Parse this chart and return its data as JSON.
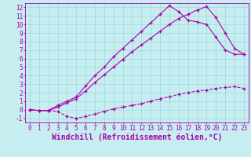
{
  "xlabel": "Windchill (Refroidissement éolien,°C)",
  "background_color": "#c6eef0",
  "grid_color": "#9dd8dc",
  "line_color": "#aa00aa",
  "xlim": [
    -0.5,
    23.5
  ],
  "ylim": [
    -1.5,
    12.5
  ],
  "xticks": [
    0,
    1,
    2,
    3,
    4,
    5,
    6,
    7,
    8,
    9,
    10,
    11,
    12,
    13,
    14,
    15,
    16,
    17,
    18,
    19,
    20,
    21,
    22,
    23
  ],
  "yticks": [
    -1,
    0,
    1,
    2,
    3,
    4,
    5,
    6,
    7,
    8,
    9,
    10,
    11,
    12
  ],
  "line1_x": [
    0,
    1,
    2,
    3,
    4,
    5,
    6,
    7,
    8,
    9,
    10,
    11,
    12,
    13,
    14,
    15,
    16,
    17,
    18,
    19,
    20,
    21,
    22,
    23
  ],
  "line1_y": [
    0,
    -0.1,
    -0.1,
    -0.2,
    -0.8,
    -1.0,
    -0.8,
    -0.5,
    -0.2,
    0.1,
    0.3,
    0.5,
    0.7,
    1.0,
    1.3,
    1.5,
    1.8,
    2.0,
    2.2,
    2.3,
    2.5,
    2.6,
    2.7,
    2.5
  ],
  "line2_x": [
    0,
    1,
    2,
    3,
    4,
    5,
    6,
    7,
    8,
    9,
    10,
    11,
    12,
    13,
    14,
    15,
    16,
    17,
    18,
    19,
    20,
    21,
    22,
    23
  ],
  "line2_y": [
    0,
    -0.1,
    -0.1,
    0.5,
    1.0,
    1.5,
    2.8,
    4.0,
    5.0,
    6.2,
    7.2,
    8.2,
    9.2,
    10.2,
    11.2,
    12.2,
    11.5,
    10.5,
    10.3,
    10.0,
    8.5,
    7.0,
    6.5,
    6.5
  ],
  "line3_x": [
    0,
    1,
    2,
    3,
    4,
    5,
    6,
    7,
    8,
    9,
    10,
    11,
    12,
    13,
    14,
    15,
    16,
    17,
    18,
    19,
    20,
    21,
    22,
    23
  ],
  "line3_y": [
    0,
    -0.1,
    -0.1,
    0.3,
    0.8,
    1.3,
    2.2,
    3.2,
    4.1,
    5.0,
    5.9,
    6.8,
    7.6,
    8.4,
    9.2,
    10.0,
    10.7,
    11.2,
    11.7,
    12.1,
    10.8,
    9.0,
    7.2,
    6.5
  ],
  "font_family": "monospace",
  "tick_fontsize": 5.5,
  "label_fontsize": 7.0
}
